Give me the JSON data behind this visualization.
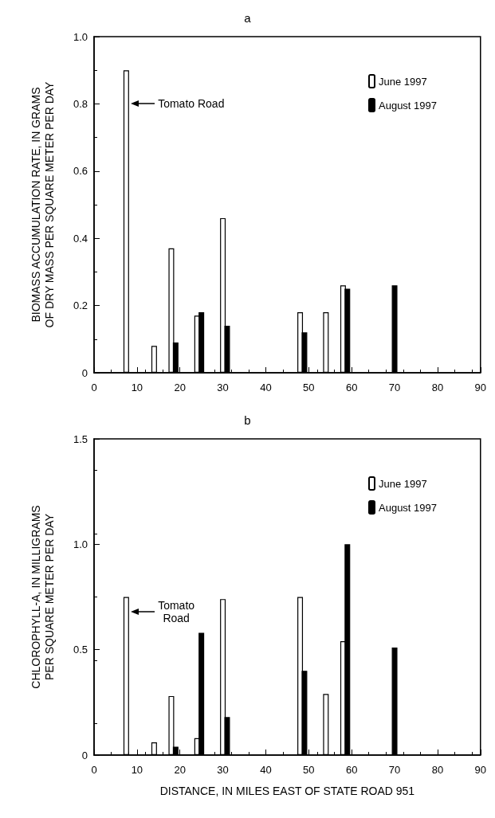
{
  "chart_data": [
    {
      "type": "bar",
      "title": "a",
      "ylabel": "BIOMASS ACCUMULATION RATE, IN GRAMS OF DRY MASS PER SQUARE METER PER DAY",
      "xlim": [
        0,
        90
      ],
      "xticks": [
        0,
        10,
        20,
        30,
        40,
        50,
        60,
        70,
        80,
        90
      ],
      "ylim": [
        0,
        1
      ],
      "yticks": [
        0,
        0.2,
        0.4,
        0.6,
        0.8,
        {
          "value": 1,
          "label": "1.0"
        }
      ],
      "grid": false,
      "legend": "top right",
      "series": [
        {
          "name": "June 1997",
          "color": "#ffffff",
          "x": [
            7.5,
            14,
            18,
            24,
            30,
            48,
            54,
            58
          ],
          "values": [
            0.9,
            0.08,
            0.37,
            0.17,
            0.46,
            0.18,
            0.18,
            0.26
          ]
        },
        {
          "name": "August 1997",
          "color": "#000000",
          "x": [
            19,
            25,
            31,
            49,
            59,
            70
          ],
          "values": [
            0.09,
            0.18,
            0.14,
            0.12,
            0.25,
            0.26
          ]
        }
      ],
      "annotations": [
        {
          "text": "Tomato Road",
          "x": 8.2,
          "y": 0.8
        }
      ]
    },
    {
      "type": "bar",
      "title": "b",
      "xlabel": "DISTANCE, IN MILES EAST OF STATE ROAD 951",
      "ylabel": "CHLOROPHYLL-A, IN MILLIGRAMS PER SQUARE METER PER DAY",
      "xlim": [
        0,
        90
      ],
      "xticks": [
        0,
        10,
        20,
        30,
        40,
        50,
        60,
        70,
        80,
        90
      ],
      "ylim": [
        0,
        1.5
      ],
      "yticks": [
        0,
        0.5,
        {
          "value": 1,
          "label": "1.0"
        },
        1.5
      ],
      "grid": false,
      "legend": "top right",
      "series": [
        {
          "name": "June 1997",
          "color": "#ffffff",
          "x": [
            7.5,
            14,
            18,
            24,
            30,
            48,
            54,
            58
          ],
          "values": [
            0.75,
            0.06,
            0.28,
            0.08,
            0.74,
            0.75,
            0.29,
            0.54
          ]
        },
        {
          "name": "August 1997",
          "color": "#000000",
          "x": [
            19,
            25,
            31,
            49,
            59,
            70
          ],
          "values": [
            0.04,
            0.58,
            0.18,
            0.4,
            1.0,
            0.51
          ]
        }
      ],
      "annotations": [
        {
          "text": "Tomato\nRoad",
          "x": 8.2,
          "y": 0.68
        }
      ]
    }
  ]
}
